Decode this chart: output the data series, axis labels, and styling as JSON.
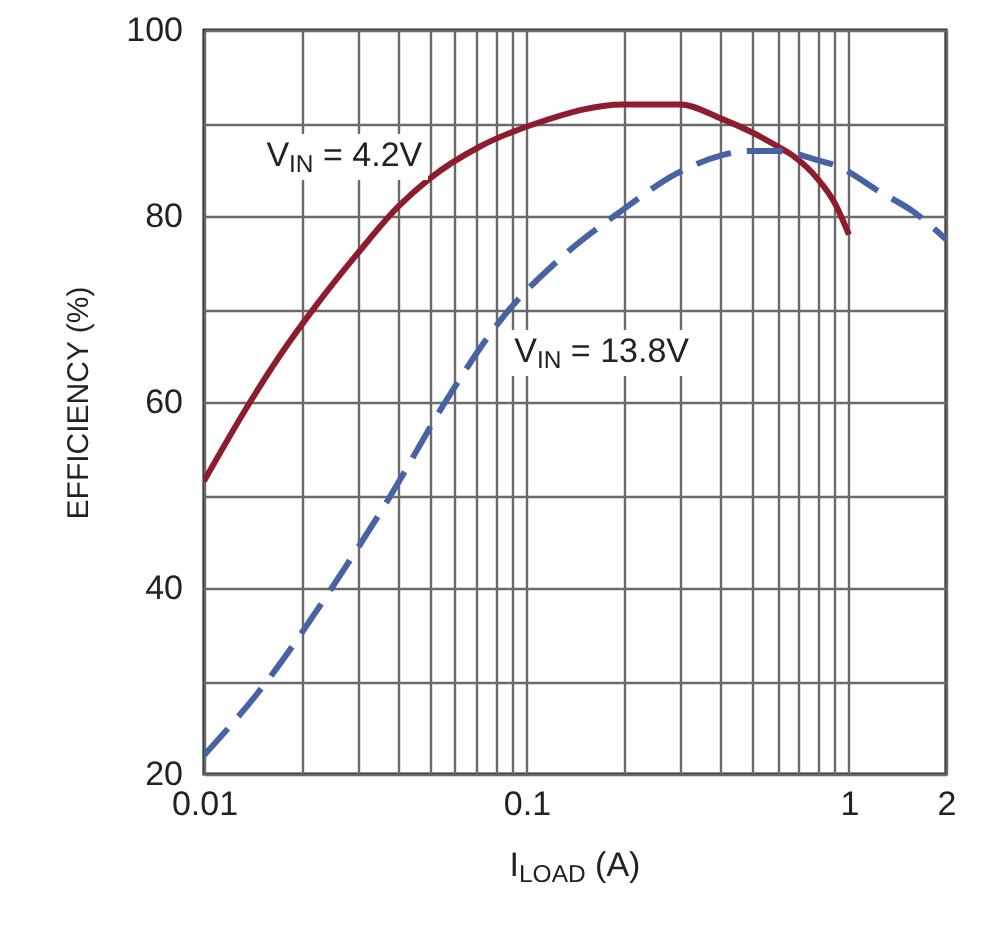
{
  "chart_data": {
    "type": "line",
    "xlabel": "I$_{LOAD}$ (A)",
    "ylabel": "EFFICIENCY (%)",
    "log": "x",
    "grid": true,
    "xlim": [
      0.01,
      2
    ],
    "ylim": [
      20,
      100
    ],
    "xticks": [
      0.01,
      {
        "value": 0.02,
        "label": null
      },
      {
        "value": 0.03,
        "label": null
      },
      {
        "value": 0.04,
        "label": null
      },
      {
        "value": 0.05,
        "label": null
      },
      {
        "value": 0.06,
        "label": null
      },
      {
        "value": 0.07,
        "label": null
      },
      {
        "value": 0.08,
        "label": null
      },
      {
        "value": 0.09,
        "label": null
      },
      0.1,
      {
        "value": 0.2,
        "label": null
      },
      {
        "value": 0.3,
        "label": null
      },
      {
        "value": 0.4,
        "label": null
      },
      {
        "value": 0.5,
        "label": null
      },
      {
        "value": 0.6,
        "label": null
      },
      {
        "value": 0.7,
        "label": null
      },
      {
        "value": 0.8,
        "label": null
      },
      {
        "value": 0.9,
        "label": null
      },
      1,
      2
    ],
    "yticks": [
      20,
      {
        "value": 30,
        "label": null
      },
      40,
      {
        "value": 50,
        "label": null
      },
      60,
      {
        "value": 70,
        "label": null
      },
      80,
      {
        "value": 90,
        "label": null
      },
      100
    ],
    "series": [
      {
        "name": "V$_{IN}$ = 4.2V",
        "color": "#8e1b2e",
        "line_style": "solid",
        "x": [
          0.01,
          0.0139,
          0.0172,
          0.0224,
          0.03,
          0.04,
          0.05,
          0.072,
          0.108,
          0.2,
          0.3,
          0.4,
          0.5,
          0.6,
          0.67,
          0.8,
          0.9,
          1.0
        ],
        "values": [
          51.5,
          60,
          65,
          70.5,
          76,
          81,
          84,
          87.5,
          90,
          92,
          92,
          90.5,
          89,
          87.5,
          86.5,
          84,
          81.5,
          78
        ]
      },
      {
        "name": "V$_{IN}$ = 13.8V",
        "color": "#4763a3",
        "line_style": "dashed",
        "x": [
          0.01,
          0.0157,
          0.0249,
          0.038,
          0.056,
          0.084,
          0.128,
          0.196,
          0.29,
          0.4,
          0.5,
          0.6,
          0.8,
          0.9,
          1.26,
          1.58,
          2
        ],
        "values": [
          22,
          30,
          40,
          50,
          60,
          69,
          75.5,
          80.5,
          84.5,
          86.5,
          87,
          87,
          86,
          85.5,
          82.5,
          80.5,
          77.5
        ]
      }
    ]
  }
}
